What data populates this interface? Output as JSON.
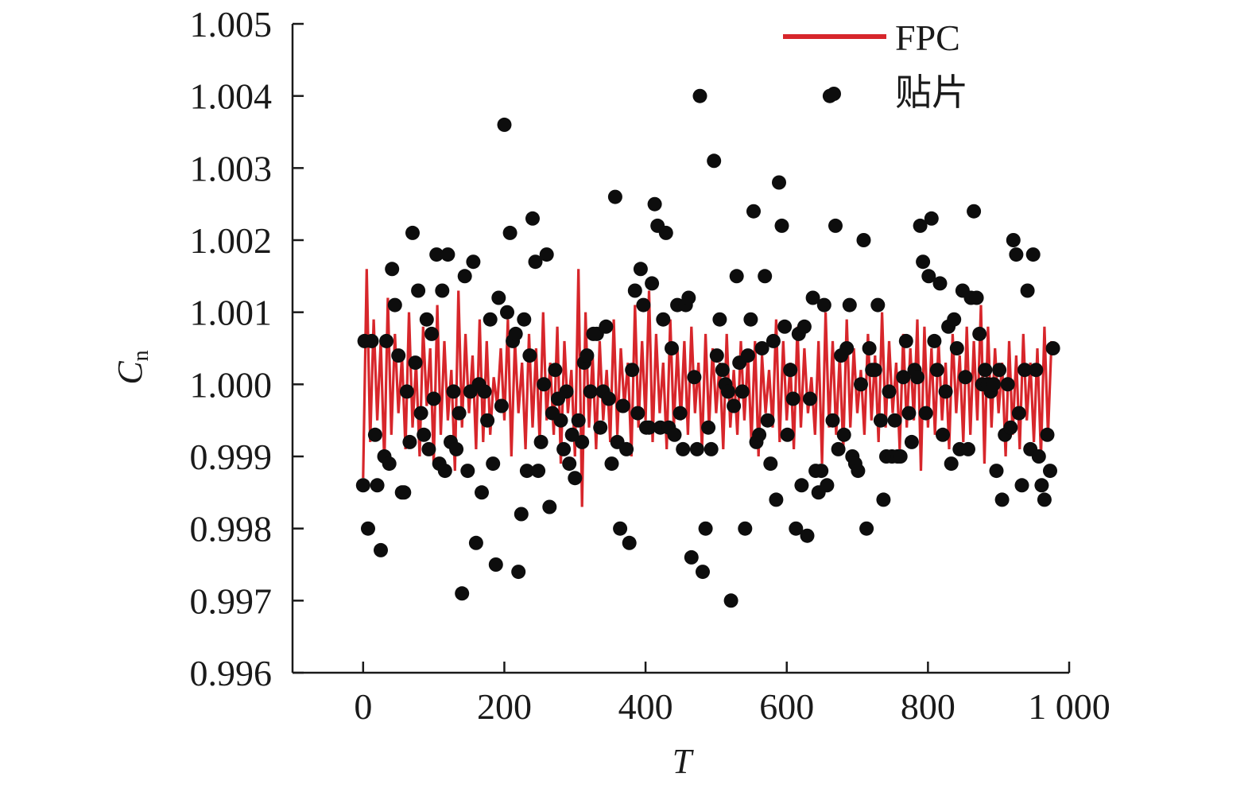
{
  "chart_data": {
    "type": "line",
    "xlabel": "T",
    "ylabel": {
      "main": "C",
      "sub": "n"
    },
    "xlim": [
      -100,
      1000
    ],
    "ylim": [
      0.996,
      1.005
    ],
    "x_ticks": [
      0,
      200,
      400,
      600,
      800,
      1000
    ],
    "x_tick_labels": [
      "0",
      "200",
      "400",
      "600",
      "800",
      "1 000"
    ],
    "y_ticks": [
      0.996,
      0.997,
      0.998,
      0.999,
      1.0,
      1.001,
      1.002,
      1.003,
      1.004,
      1.005
    ],
    "y_tick_labels": [
      "0.996",
      "0.997",
      "0.998",
      "0.999",
      "1.000",
      "1.001",
      "1.002",
      "1.003",
      "1.004",
      "1.005"
    ],
    "grid": false,
    "legend_position": "top-right",
    "series": [
      {
        "name": "FPC",
        "kind": "line",
        "color": "#d7262b",
        "x_start": 0,
        "x_step": 5,
        "values": [
          0.9987,
          1.0016,
          0.9992,
          1.0009,
          0.9995,
          1.0006,
          0.9989,
          1.0012,
          0.9993,
          1.0007,
          0.9996,
          1.0004,
          0.9991,
          1.001,
          0.9994,
          1.0003,
          0.999,
          1.0008,
          0.9997,
          1.0005,
          0.9989,
          1.0011,
          0.9993,
          1.0006,
          0.9995,
          1.0002,
          0.9988,
          1.0013,
          0.9994,
          1.0007,
          0.9996,
          1.0004,
          0.9991,
          1.0009,
          0.9992,
          1.0006,
          0.9993,
          1.0001,
          0.9997,
          1.0005,
          0.9995,
          1.0009,
          0.999,
          1.0006,
          0.9996,
          1.0003,
          0.9991,
          1.0007,
          0.9994,
          1.0005,
          0.9992,
          1.001,
          0.9995,
          1.0003,
          0.9993,
          1.0008,
          0.9989,
          1.0006,
          0.9996,
          1.0002,
          0.999,
          1.0016,
          0.9983,
          1.001,
          0.9994,
          1.0004,
          0.9991,
          1.0006,
          0.9995,
          1.0002,
          0.9992,
          1.0009,
          0.9993,
          1.0005,
          0.9997,
          1.0003,
          0.999,
          1.0011,
          0.9994,
          1.0006,
          0.9995,
          1.0013,
          0.9992,
          1.0007,
          0.9996,
          1.0003,
          0.9991,
          1.0009,
          0.9994,
          1.0005,
          0.9995,
          1.0006,
          0.9993,
          1.0008,
          0.9996,
          1.0003,
          0.9991,
          1.0007,
          0.9994,
          1.0005,
          0.9996,
          1.0003,
          0.9991,
          1.0007,
          0.9994,
          1.0002,
          0.9993,
          1.0006,
          0.9995,
          1.0004,
          0.9992,
          1.0006,
          0.999,
          1.0004,
          0.9996,
          1.0002,
          0.9994,
          1.0009,
          0.9992,
          1.0006,
          0.9995,
          1.0003,
          0.9991,
          1.0008,
          0.9994,
          1.0005,
          0.9996,
          1.0001,
          0.9993,
          1.0006,
          0.9989,
          1.001,
          0.9994,
          1.0006,
          0.9993,
          1.0004,
          0.9991,
          1.0009,
          0.9994,
          1.0005,
          0.9996,
          1.0002,
          0.9993,
          1.0007,
          0.9995,
          1.0004,
          0.9992,
          1.001,
          0.9994,
          1.0006,
          0.9996,
          1.0003,
          0.9991,
          1.0007,
          0.9994,
          1.0005,
          0.9995,
          1.0009,
          0.9988,
          1.0008,
          0.9994,
          1.0005,
          0.9993,
          1.0006,
          0.9995,
          1.0003,
          0.9991,
          1.0007,
          0.9996,
          1.0004,
          0.9992,
          1.0008,
          0.9993,
          1.0006,
          0.9995,
          1.0011,
          0.9989,
          1.0008,
          0.9994,
          1.0005,
          0.9996,
          1.0003,
          0.999,
          1.0006,
          0.9993,
          1.0004,
          0.9991,
          1.0007,
          0.9995,
          1.0003,
          0.9992,
          1.0005,
          0.999,
          1.0008,
          0.9993,
          1.0006
        ]
      },
      {
        "name": "贴片",
        "kind": "scatter",
        "color": "#0d0d0d",
        "points": [
          [
            0,
            0.9986
          ],
          [
            2,
            1.0006
          ],
          [
            7,
            0.998
          ],
          [
            12,
            1.0006
          ],
          [
            17,
            0.9993
          ],
          [
            20,
            0.9986
          ],
          [
            25,
            0.9977
          ],
          [
            30,
            0.999
          ],
          [
            33,
            1.0006
          ],
          [
            37,
            0.9989
          ],
          [
            41,
            1.0016
          ],
          [
            45,
            1.0011
          ],
          [
            50,
            1.0004
          ],
          [
            55,
            0.9985
          ],
          [
            58,
            0.9985
          ],
          [
            62,
            0.9999
          ],
          [
            66,
            0.9992
          ],
          [
            70,
            1.0021
          ],
          [
            74,
            1.0003
          ],
          [
            78,
            1.0013
          ],
          [
            82,
            0.9996
          ],
          [
            86,
            0.9993
          ],
          [
            90,
            1.0009
          ],
          [
            93,
            0.9991
          ],
          [
            97,
            1.0007
          ],
          [
            100,
            0.9998
          ],
          [
            104,
            1.0018
          ],
          [
            108,
            0.9989
          ],
          [
            112,
            1.0013
          ],
          [
            116,
            0.9988
          ],
          [
            120,
            1.0018
          ],
          [
            124,
            0.9992
          ],
          [
            128,
            0.9999
          ],
          [
            132,
            0.9991
          ],
          [
            136,
            0.9996
          ],
          [
            140,
            0.9971
          ],
          [
            144,
            1.0015
          ],
          [
            148,
            0.9988
          ],
          [
            152,
            0.9999
          ],
          [
            156,
            1.0017
          ],
          [
            160,
            0.9978
          ],
          [
            164,
            1.0
          ],
          [
            168,
            0.9985
          ],
          [
            172,
            0.9999
          ],
          [
            176,
            0.9995
          ],
          [
            180,
            1.0009
          ],
          [
            184,
            0.9989
          ],
          [
            188,
            0.9975
          ],
          [
            192,
            1.0012
          ],
          [
            196,
            0.9997
          ],
          [
            200,
            1.0036
          ],
          [
            204,
            1.001
          ],
          [
            208,
            1.0021
          ],
          [
            212,
            1.0006
          ],
          [
            216,
            1.0007
          ],
          [
            220,
            0.9974
          ],
          [
            224,
            0.9982
          ],
          [
            228,
            1.0009
          ],
          [
            232,
            0.9988
          ],
          [
            236,
            1.0004
          ],
          [
            240,
            1.0023
          ],
          [
            244,
            1.0017
          ],
          [
            248,
            0.9988
          ],
          [
            252,
            0.9992
          ],
          [
            256,
            1.0
          ],
          [
            260,
            1.0018
          ],
          [
            264,
            0.9983
          ],
          [
            268,
            0.9996
          ],
          [
            272,
            1.0002
          ],
          [
            276,
            0.9998
          ],
          [
            280,
            0.9995
          ],
          [
            284,
            0.9991
          ],
          [
            288,
            0.9999
          ],
          [
            292,
            0.9989
          ],
          [
            296,
            0.9993
          ],
          [
            300,
            0.9987
          ],
          [
            305,
            0.9995
          ],
          [
            310,
            0.9992
          ],
          [
            313,
            1.0003
          ],
          [
            317,
            1.0004
          ],
          [
            322,
            0.9999
          ],
          [
            326,
            1.0007
          ],
          [
            331,
            1.0007
          ],
          [
            336,
            0.9994
          ],
          [
            340,
            0.9999
          ],
          [
            344,
            1.0008
          ],
          [
            348,
            0.9998
          ],
          [
            352,
            0.9989
          ],
          [
            357,
            1.0026
          ],
          [
            360,
            0.9992
          ],
          [
            364,
            0.998
          ],
          [
            368,
            0.9997
          ],
          [
            373,
            0.9991
          ],
          [
            377,
            0.9978
          ],
          [
            381,
            1.0002
          ],
          [
            385,
            1.0013
          ],
          [
            389,
            0.9996
          ],
          [
            393,
            1.0016
          ],
          [
            397,
            1.0011
          ],
          [
            401,
            0.9994
          ],
          [
            405,
            0.9994
          ],
          [
            409,
            1.0014
          ],
          [
            413,
            1.0025
          ],
          [
            417,
            1.0022
          ],
          [
            421,
            0.9994
          ],
          [
            425,
            1.0009
          ],
          [
            429,
            1.0021
          ],
          [
            433,
            0.9994
          ],
          [
            437,
            1.0005
          ],
          [
            441,
            0.9993
          ],
          [
            445,
            1.0011
          ],
          [
            449,
            0.9996
          ],
          [
            453,
            0.9991
          ],
          [
            457,
            1.0011
          ],
          [
            461,
            1.0012
          ],
          [
            465,
            0.9976
          ],
          [
            469,
            1.0001
          ],
          [
            473,
            0.9991
          ],
          [
            477,
            1.004
          ],
          [
            481,
            0.9974
          ],
          [
            485,
            0.998
          ],
          [
            489,
            0.9994
          ],
          [
            493,
            0.9991
          ],
          [
            497,
            1.0031
          ],
          [
            501,
            1.0004
          ],
          [
            505,
            1.0009
          ],
          [
            509,
            1.0002
          ],
          [
            513,
            1.0
          ],
          [
            517,
            0.9999
          ],
          [
            521,
            0.997
          ],
          [
            525,
            0.9997
          ],
          [
            529,
            1.0015
          ],
          [
            533,
            1.0003
          ],
          [
            537,
            0.9999
          ],
          [
            541,
            0.998
          ],
          [
            545,
            1.0004
          ],
          [
            549,
            1.0009
          ],
          [
            553,
            1.0024
          ],
          [
            557,
            0.9992
          ],
          [
            561,
            0.9993
          ],
          [
            565,
            1.0005
          ],
          [
            569,
            1.0015
          ],
          [
            573,
            0.9995
          ],
          [
            577,
            0.9989
          ],
          [
            581,
            1.0006
          ],
          [
            585,
            0.9984
          ],
          [
            589,
            1.0028
          ],
          [
            593,
            1.0022
          ],
          [
            597,
            1.0008
          ],
          [
            601,
            0.9993
          ],
          [
            605,
            1.0002
          ],
          [
            609,
            0.9998
          ],
          [
            613,
            0.998
          ],
          [
            617,
            1.0007
          ],
          [
            621,
            0.9986
          ],
          [
            625,
            1.0008
          ],
          [
            629,
            0.9979
          ],
          [
            633,
            0.9998
          ],
          [
            637,
            1.0012
          ],
          [
            641,
            0.9988
          ],
          [
            645,
            0.9985
          ],
          [
            649,
            0.9988
          ],
          [
            653,
            1.0011
          ],
          [
            657,
            0.9986
          ],
          [
            661,
            1.004
          ],
          [
            665,
            0.9995
          ],
          [
            669,
            1.0022
          ],
          [
            673,
            0.9991
          ],
          [
            677,
            1.0004
          ],
          [
            681,
            0.9993
          ],
          [
            685,
            1.0005
          ],
          [
            689,
            1.0011
          ],
          [
            693,
            0.999
          ],
          [
            697,
            0.9989
          ],
          [
            701,
            0.9988
          ],
          [
            705,
            1.0
          ],
          [
            709,
            1.002
          ],
          [
            713,
            0.998
          ],
          [
            717,
            1.0005
          ],
          [
            721,
            1.0002
          ],
          [
            725,
            1.0002
          ],
          [
            729,
            1.0011
          ],
          [
            733,
            0.9995
          ],
          [
            737,
            0.9984
          ],
          [
            741,
            0.999
          ],
          [
            745,
            0.9999
          ],
          [
            749,
            0.999
          ],
          [
            753,
            0.9995
          ],
          [
            757,
            0.999
          ],
          [
            761,
            0.999
          ],
          [
            765,
            1.0001
          ],
          [
            769,
            1.0006
          ],
          [
            773,
            0.9996
          ],
          [
            777,
            0.9992
          ],
          [
            781,
            1.0002
          ],
          [
            785,
            1.0001
          ],
          [
            789,
            1.0022
          ],
          [
            793,
            1.0017
          ],
          [
            797,
            0.9996
          ],
          [
            801,
            1.0015
          ],
          [
            805,
            1.0023
          ],
          [
            809,
            1.0006
          ],
          [
            813,
            1.0002
          ],
          [
            817,
            1.0014
          ],
          [
            821,
            0.9993
          ],
          [
            825,
            0.9999
          ],
          [
            829,
            1.0008
          ],
          [
            833,
            0.9989
          ],
          [
            837,
            1.0009
          ],
          [
            841,
            1.0005
          ],
          [
            845,
            0.9991
          ],
          [
            849,
            1.0013
          ],
          [
            853,
            1.0001
          ],
          [
            857,
            0.9991
          ],
          [
            861,
            1.0012
          ],
          [
            865,
            1.0024
          ],
          [
            869,
            1.0012
          ],
          [
            873,
            1.0007
          ],
          [
            877,
            1.0
          ],
          [
            881,
            1.0002
          ],
          [
            885,
            1.0
          ],
          [
            889,
            0.9999
          ],
          [
            893,
            1.0
          ],
          [
            897,
            0.9988
          ],
          [
            901,
            1.0002
          ],
          [
            905,
            0.9984
          ],
          [
            909,
            0.9993
          ],
          [
            913,
            1.0
          ],
          [
            917,
            0.9994
          ],
          [
            921,
            1.002
          ],
          [
            925,
            1.0018
          ],
          [
            929,
            0.9996
          ],
          [
            933,
            0.9986
          ],
          [
            937,
            1.0002
          ],
          [
            941,
            1.0013
          ],
          [
            945,
            0.9991
          ],
          [
            949,
            1.0018
          ],
          [
            953,
            1.0002
          ],
          [
            957,
            0.999
          ],
          [
            961,
            0.9986
          ],
          [
            965,
            0.9984
          ],
          [
            969,
            0.9993
          ],
          [
            973,
            0.9988
          ],
          [
            977,
            1.0005
          ]
        ]
      }
    ]
  }
}
